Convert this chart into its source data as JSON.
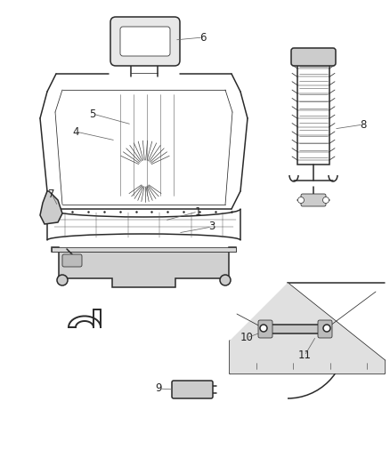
{
  "figsize": [
    4.39,
    5.33
  ],
  "dpi": 100,
  "line_color": "#2a2a2a",
  "label_color": "#222222",
  "label_size": 8.5,
  "bg_color": "#ffffff"
}
